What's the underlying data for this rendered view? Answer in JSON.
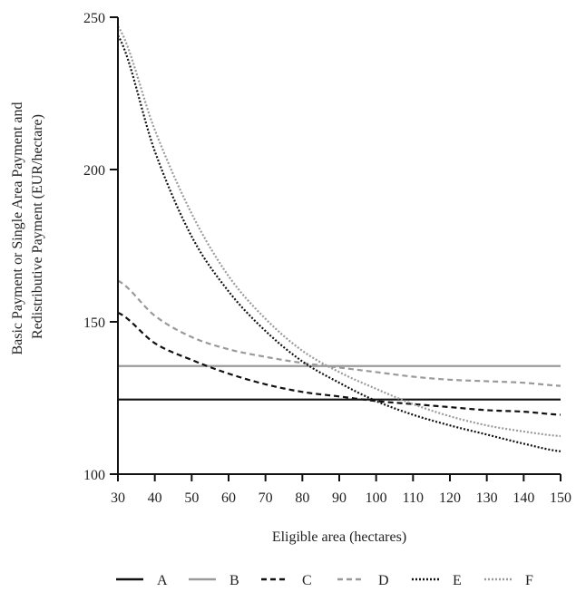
{
  "chart_data": {
    "type": "line",
    "xlabel": "Eligible area (hectares)",
    "ylabel": [
      "Basic Payment or Single Area Payment and",
      "Redistributive Payment (EUR/hectare)"
    ],
    "xlim": [
      30,
      150
    ],
    "ylim": [
      100,
      250
    ],
    "x_ticks": [
      30,
      40,
      50,
      60,
      70,
      80,
      90,
      100,
      110,
      120,
      130,
      140,
      150
    ],
    "y_ticks": [
      100,
      150,
      200,
      250
    ],
    "grid": false,
    "legend_position": "bottom",
    "x": [
      30,
      40,
      50,
      60,
      70,
      80,
      90,
      100,
      110,
      120,
      130,
      140,
      150
    ],
    "series": [
      {
        "name": "A",
        "color": "#111111",
        "dash": "solid",
        "values": [
          124.5,
          124.5,
          124.5,
          124.5,
          124.5,
          124.5,
          124.5,
          124.5,
          124.5,
          124.5,
          124.5,
          124.5,
          124.5
        ]
      },
      {
        "name": "B",
        "color": "#9a9a9a",
        "dash": "solid",
        "values": [
          135.5,
          135.5,
          135.5,
          135.5,
          135.5,
          135.5,
          135.5,
          135.5,
          135.5,
          135.5,
          135.5,
          135.5,
          135.5
        ]
      },
      {
        "name": "C",
        "color": "#111111",
        "dash": "dashed",
        "values": [
          153,
          143,
          137.5,
          133,
          129.5,
          127,
          125.5,
          124,
          123,
          122,
          121,
          120.5,
          119.5
        ]
      },
      {
        "name": "D",
        "color": "#9a9a9a",
        "dash": "dashed",
        "values": [
          163.5,
          152,
          145,
          141,
          138.5,
          136.5,
          135,
          133.5,
          132,
          131,
          130.5,
          130,
          129
        ]
      },
      {
        "name": "E",
        "color": "#111111",
        "dash": "dotted",
        "values": [
          244,
          206,
          178,
          160,
          147,
          137,
          130,
          124,
          119.5,
          116,
          113,
          110,
          107.5
        ]
      },
      {
        "name": "F",
        "color": "#9a9a9a",
        "dash": "dotted",
        "values": [
          247,
          213,
          185.5,
          165,
          151,
          140.5,
          133.5,
          128,
          123,
          119,
          116,
          114,
          112.5
        ]
      }
    ]
  }
}
